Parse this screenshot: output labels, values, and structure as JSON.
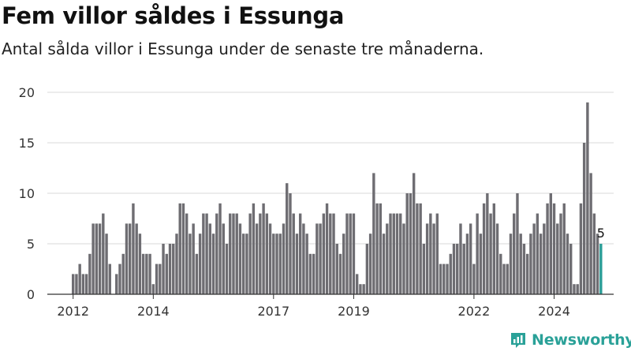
{
  "header": {
    "title": "Fem villor såldes i Essunga",
    "subtitle": "Antal sålda villor i Essunga under de senaste tre månaderna."
  },
  "brand": {
    "name": "Newsworthy",
    "icon": "bar-chart-logo-icon",
    "color": "#2aa198"
  },
  "colors": {
    "bar": "#6e6d72",
    "highlight": "#2a9d97",
    "grid": "#d9d9d9"
  },
  "chart_data": {
    "type": "bar",
    "title": "Fem villor såldes i Essunga",
    "subtitle": "Antal sålda villor i Essunga under de senaste tre månaderna.",
    "xlabel": "",
    "ylabel": "",
    "ylim": [
      0,
      20
    ],
    "yticks": [
      0,
      5,
      10,
      15,
      20
    ],
    "xticks": [
      "2012",
      "2014",
      "2017",
      "2019",
      "2022",
      "2024"
    ],
    "grid": true,
    "legend": "none",
    "first_period": "2012-01",
    "period": "month",
    "values": [
      2,
      2,
      3,
      2,
      2,
      4,
      7,
      7,
      7,
      8,
      6,
      3,
      0,
      2,
      3,
      4,
      7,
      7,
      9,
      7,
      6,
      4,
      4,
      4,
      1,
      3,
      3,
      5,
      4,
      5,
      5,
      6,
      9,
      9,
      8,
      6,
      7,
      4,
      6,
      8,
      8,
      7,
      6,
      8,
      9,
      7,
      5,
      8,
      8,
      8,
      7,
      6,
      6,
      8,
      9,
      7,
      8,
      9,
      8,
      7,
      6,
      6,
      6,
      7,
      11,
      10,
      8,
      6,
      8,
      7,
      6,
      4,
      4,
      7,
      7,
      8,
      9,
      8,
      8,
      5,
      4,
      6,
      8,
      8,
      8,
      2,
      1,
      1,
      5,
      6,
      12,
      9,
      9,
      6,
      7,
      8,
      8,
      8,
      8,
      7,
      10,
      10,
      12,
      9,
      9,
      5,
      7,
      8,
      7,
      8,
      3,
      3,
      3,
      4,
      5,
      5,
      7,
      5,
      6,
      7,
      3,
      8,
      6,
      9,
      10,
      8,
      9,
      7,
      4,
      3,
      3,
      6,
      8,
      10,
      6,
      5,
      4,
      6,
      7,
      8,
      6,
      7,
      9,
      10,
      9,
      7,
      8,
      9,
      6,
      5,
      1,
      1,
      9,
      15,
      19,
      12,
      8,
      6,
      5
    ],
    "highlight_last": true,
    "last_value_label": "5"
  }
}
